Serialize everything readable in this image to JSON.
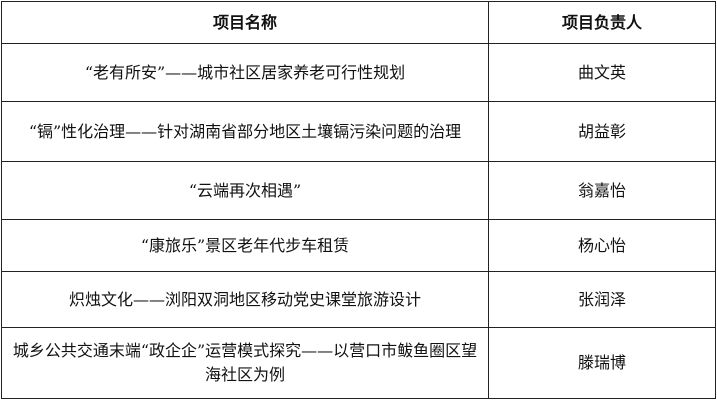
{
  "table": {
    "headers": [
      "项目名称",
      "项目负责人"
    ],
    "rows": [
      {
        "name": "“老有所安”——城市社区居家养老可行性规划",
        "leader": "曲文英"
      },
      {
        "name": "“镉”性化治理——针对湖南省部分地区土壤镉污染问题的治理",
        "leader": "胡益彰"
      },
      {
        "name": "“云端再次相遇”",
        "leader": "翁嘉怡"
      },
      {
        "name": "“康旅乐”景区老年代步车租赁",
        "leader": "杨心怡"
      },
      {
        "name": "炽烛文化——浏阳双洞地区移动党史课堂旅游设计",
        "leader": "张润泽"
      },
      {
        "name": "城乡公共交通末端“政企企”运营模式探究——以营口市鲅鱼圈区望海社区为例",
        "leader": "滕瑞博"
      }
    ]
  }
}
